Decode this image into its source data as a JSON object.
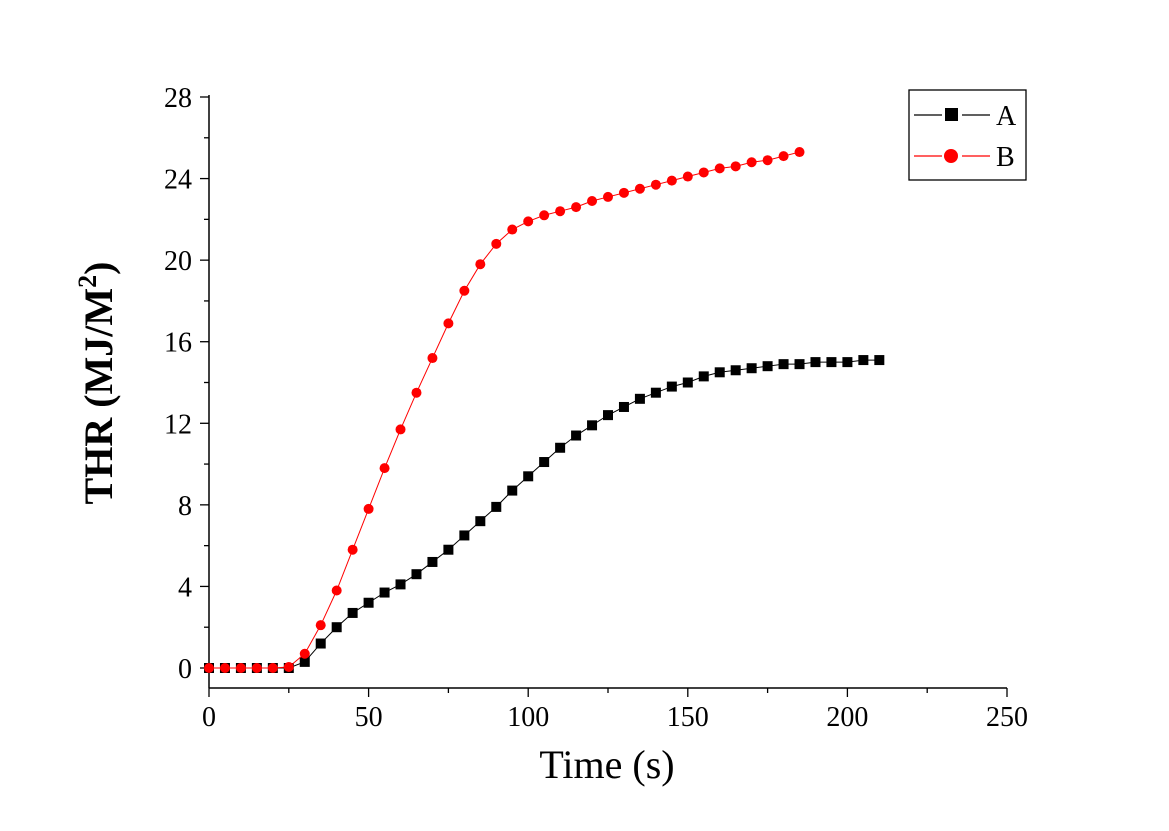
{
  "chart_data": {
    "type": "line",
    "xlabel": "Time (s)",
    "ylabel": {
      "text": "THR (MJ/M",
      "sup": "2",
      "close": ")"
    },
    "xlim": [
      0,
      250
    ],
    "ylim": [
      0,
      28
    ],
    "xticks": [
      0,
      50,
      100,
      150,
      200,
      250
    ],
    "yticks": [
      0,
      4,
      8,
      12,
      16,
      20,
      24,
      28
    ],
    "grid": false,
    "legend_position": "top-right",
    "series": [
      {
        "name": "A",
        "color": "#000000",
        "marker": "square",
        "x": [
          0,
          5,
          10,
          15,
          20,
          25,
          30,
          35,
          40,
          45,
          50,
          55,
          60,
          65,
          70,
          75,
          80,
          85,
          90,
          95,
          100,
          105,
          110,
          115,
          120,
          125,
          130,
          135,
          140,
          145,
          150,
          155,
          160,
          165,
          170,
          175,
          180,
          185,
          190,
          195,
          200,
          205,
          210
        ],
        "y": [
          0,
          0,
          0,
          0,
          0,
          0,
          0.3,
          1.2,
          2.0,
          2.7,
          3.2,
          3.7,
          4.1,
          4.6,
          5.2,
          5.8,
          6.5,
          7.2,
          7.9,
          8.7,
          9.4,
          10.1,
          10.8,
          11.4,
          11.9,
          12.4,
          12.8,
          13.2,
          13.5,
          13.8,
          14.0,
          14.3,
          14.5,
          14.6,
          14.7,
          14.8,
          14.9,
          14.9,
          15.0,
          15.0,
          15.0,
          15.1,
          15.1
        ]
      },
      {
        "name": "B",
        "color": "#ff0000",
        "marker": "circle",
        "x": [
          0,
          5,
          10,
          15,
          20,
          25,
          30,
          35,
          40,
          45,
          50,
          55,
          60,
          65,
          70,
          75,
          80,
          85,
          90,
          95,
          100,
          105,
          110,
          115,
          120,
          125,
          130,
          135,
          140,
          145,
          150,
          155,
          160,
          165,
          170,
          175,
          180,
          185
        ],
        "y": [
          0,
          0,
          0,
          0,
          0,
          0.05,
          0.7,
          2.1,
          3.8,
          5.8,
          7.8,
          9.8,
          11.7,
          13.5,
          15.2,
          16.9,
          18.5,
          19.8,
          20.8,
          21.5,
          21.9,
          22.2,
          22.4,
          22.6,
          22.9,
          23.1,
          23.3,
          23.5,
          23.7,
          23.9,
          24.1,
          24.3,
          24.5,
          24.6,
          24.8,
          24.9,
          25.1,
          25.3
        ]
      }
    ]
  }
}
